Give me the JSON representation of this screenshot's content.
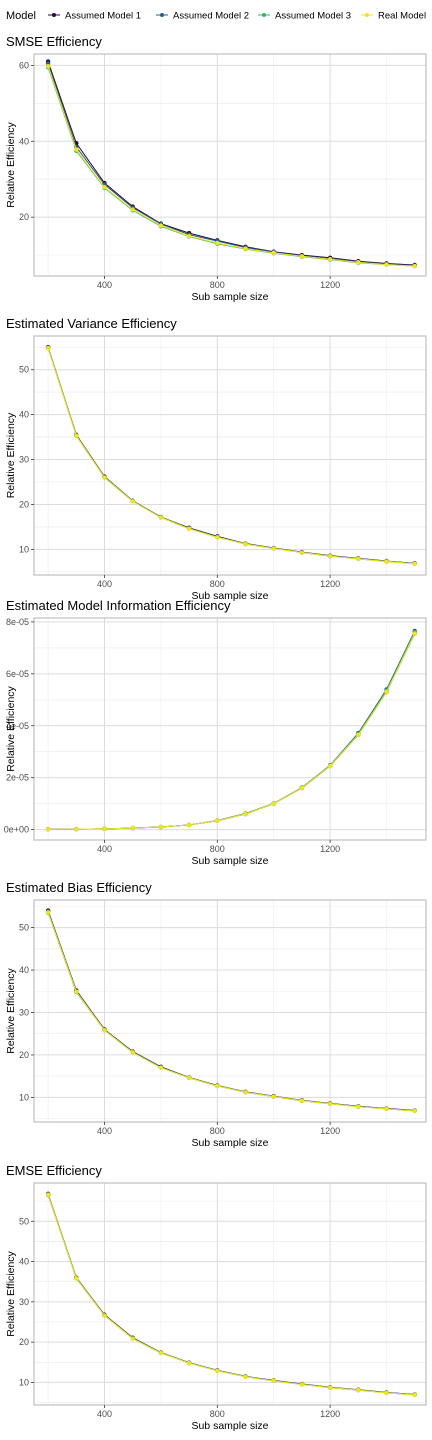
{
  "legend": {
    "title": "Model",
    "items": [
      {
        "label": "Assumed Model 1",
        "color": "#2b0a3d"
      },
      {
        "label": "Assumed Model 2",
        "color": "#2c5d8a"
      },
      {
        "label": "Assumed Model 3",
        "color": "#2eb872"
      },
      {
        "label": "Real Model",
        "color": "#f2e41c"
      }
    ]
  },
  "chart_data": [
    {
      "type": "line",
      "title": "SMSE Efficiency",
      "xlabel": "Sub sample size",
      "ylabel": "Relative Efficiency",
      "x": [
        200,
        300,
        400,
        500,
        600,
        700,
        800,
        900,
        1000,
        1100,
        1200,
        1300,
        1400,
        1500
      ],
      "xlim": [
        150,
        1540
      ],
      "ylim": [
        4.5,
        63
      ],
      "xticks": [
        400,
        800,
        1200
      ],
      "yticks": [
        20,
        40,
        60
      ],
      "series": [
        {
          "name": "Assumed Model 1",
          "values": [
            61.0,
            39.5,
            29.0,
            22.8,
            18.3,
            15.8,
            13.9,
            12.2,
            10.9,
            10.0,
            9.3,
            8.4,
            7.8,
            7.4
          ]
        },
        {
          "name": "Assumed Model 2",
          "values": [
            60.5,
            38.5,
            28.6,
            22.5,
            18.2,
            15.4,
            13.7,
            12.0,
            10.8,
            9.8,
            9.0,
            8.2,
            7.6,
            7.2
          ]
        },
        {
          "name": "Assumed Model 3",
          "values": [
            59.5,
            37.5,
            27.7,
            21.8,
            17.6,
            14.9,
            13.0,
            11.6,
            10.5,
            9.6,
            8.8,
            8.0,
            7.5,
            7.1
          ]
        },
        {
          "name": "Real Model",
          "values": [
            59.8,
            37.8,
            27.9,
            22.0,
            17.8,
            15.0,
            13.2,
            11.7,
            10.6,
            9.7,
            8.9,
            8.1,
            7.5,
            7.1
          ]
        }
      ]
    },
    {
      "type": "line",
      "title": "Estimated Variance Efficiency",
      "xlabel": "Sub sample size",
      "ylabel": "Relative Efficiency",
      "x": [
        200,
        300,
        400,
        500,
        600,
        700,
        800,
        900,
        1000,
        1100,
        1200,
        1300,
        1400,
        1500
      ],
      "xlim": [
        150,
        1540
      ],
      "ylim": [
        4.3,
        57.5
      ],
      "xticks": [
        400,
        800,
        1200
      ],
      "yticks": [
        10,
        20,
        30,
        40,
        50
      ],
      "series": [
        {
          "name": "Assumed Model 1",
          "values": [
            55.0,
            35.5,
            26.2,
            20.8,
            17.2,
            14.8,
            12.9,
            11.3,
            10.3,
            9.4,
            8.6,
            8.0,
            7.4,
            6.9
          ]
        },
        {
          "name": "Assumed Model 2",
          "values": [
            54.9,
            35.4,
            26.1,
            20.8,
            17.2,
            14.7,
            12.8,
            11.2,
            10.3,
            9.3,
            8.5,
            8.0,
            7.4,
            6.9
          ]
        },
        {
          "name": "Assumed Model 3",
          "values": [
            54.8,
            35.3,
            26.0,
            20.7,
            17.1,
            14.6,
            12.7,
            11.2,
            10.2,
            9.3,
            8.5,
            7.9,
            7.3,
            6.8
          ]
        },
        {
          "name": "Real Model",
          "values": [
            54.8,
            35.3,
            26.0,
            20.7,
            17.1,
            14.6,
            12.7,
            11.2,
            10.2,
            9.3,
            8.5,
            7.9,
            7.3,
            6.8
          ]
        }
      ]
    },
    {
      "type": "line",
      "title": "Estimated Model Information Efficiency",
      "xlabel": "Sub sample size",
      "ylabel": "Relative Efficiency",
      "x": [
        200,
        300,
        400,
        500,
        600,
        700,
        800,
        900,
        1000,
        1100,
        1200,
        1300,
        1400,
        1500
      ],
      "xlim": [
        150,
        1540
      ],
      "ylim": [
        -4e-06,
        8.15e-05
      ],
      "xticks": [
        400,
        800,
        1200
      ],
      "yticks": [
        0,
        2e-05,
        4e-05,
        6e-05,
        8e-05
      ],
      "ytick_labels": [
        "0e+00",
        "2e-05",
        "4e-05",
        "6e-05",
        "8e-05"
      ],
      "series": [
        {
          "name": "Assumed Model 1",
          "values": [
            1e-07,
            2e-07,
            3e-07,
            6e-07,
            1e-06,
            1.8e-06,
            3.4e-06,
            6e-06,
            1e-05,
            1.6e-05,
            2.45e-05,
            3.65e-05,
            5.3e-05,
            7.55e-05
          ]
        },
        {
          "name": "Assumed Model 2",
          "values": [
            1e-07,
            2e-07,
            3e-07,
            6e-07,
            1e-06,
            1.8e-06,
            3.5e-06,
            6.2e-06,
            1.01e-05,
            1.62e-05,
            2.48e-05,
            3.72e-05,
            5.4e-05,
            7.65e-05
          ]
        },
        {
          "name": "Assumed Model 3",
          "values": [
            1e-07,
            2e-07,
            3e-07,
            6e-07,
            1e-06,
            1.8e-06,
            3.4e-06,
            6.1e-06,
            1.01e-05,
            1.61e-05,
            2.47e-05,
            3.68e-05,
            5.35e-05,
            7.6e-05
          ]
        },
        {
          "name": "Real Model",
          "values": [
            1e-07,
            2e-07,
            3e-07,
            6e-07,
            1e-06,
            1.8e-06,
            3.4e-06,
            6e-06,
            1e-05,
            1.6e-05,
            2.45e-05,
            3.65e-05,
            5.3e-05,
            7.55e-05
          ]
        }
      ]
    },
    {
      "type": "line",
      "title": "Estimated Bias Efficiency",
      "xlabel": "Sub sample size",
      "ylabel": "Relative Efficiency",
      "x": [
        200,
        300,
        400,
        500,
        600,
        700,
        800,
        900,
        1000,
        1100,
        1200,
        1300,
        1400,
        1500
      ],
      "xlim": [
        150,
        1540
      ],
      "ylim": [
        4.2,
        56.5
      ],
      "xticks": [
        400,
        800,
        1200
      ],
      "yticks": [
        10,
        20,
        30,
        40,
        50
      ],
      "series": [
        {
          "name": "Assumed Model 1",
          "values": [
            54.0,
            35.2,
            26.0,
            20.8,
            17.2,
            14.7,
            12.8,
            11.3,
            10.3,
            9.3,
            8.6,
            7.9,
            7.4,
            6.9
          ]
        },
        {
          "name": "Assumed Model 2",
          "values": [
            53.8,
            35.0,
            25.9,
            20.7,
            17.1,
            14.6,
            12.7,
            11.2,
            10.2,
            9.2,
            8.5,
            7.9,
            7.3,
            6.9
          ]
        },
        {
          "name": "Assumed Model 3",
          "values": [
            53.5,
            34.8,
            25.8,
            20.6,
            17.0,
            14.6,
            12.7,
            11.2,
            10.2,
            9.2,
            8.5,
            7.8,
            7.3,
            6.8
          ]
        },
        {
          "name": "Real Model",
          "values": [
            53.6,
            34.9,
            25.8,
            20.6,
            17.0,
            14.6,
            12.7,
            11.2,
            10.2,
            9.2,
            8.5,
            7.8,
            7.3,
            6.8
          ]
        }
      ]
    },
    {
      "type": "line",
      "title": "EMSE Efficiency",
      "xlabel": "Sub sample size",
      "ylabel": "Relative Efficiency",
      "x": [
        200,
        300,
        400,
        500,
        600,
        700,
        800,
        900,
        1000,
        1100,
        1200,
        1300,
        1400,
        1500
      ],
      "xlim": [
        150,
        1540
      ],
      "ylim": [
        4.4,
        59.5
      ],
      "xticks": [
        400,
        800,
        1200
      ],
      "yticks": [
        10,
        20,
        30,
        40,
        50
      ],
      "series": [
        {
          "name": "Assumed Model 1",
          "values": [
            56.8,
            36.0,
            26.8,
            21.1,
            17.4,
            14.9,
            13.0,
            11.5,
            10.5,
            9.6,
            8.8,
            8.2,
            7.5,
            7.0
          ]
        },
        {
          "name": "Assumed Model 2",
          "values": [
            56.7,
            35.9,
            26.7,
            21.0,
            17.4,
            14.9,
            13.0,
            11.5,
            10.4,
            9.6,
            8.7,
            8.1,
            7.5,
            7.0
          ]
        },
        {
          "name": "Assumed Model 3",
          "values": [
            56.5,
            35.8,
            26.6,
            20.9,
            17.3,
            14.8,
            12.9,
            11.4,
            10.4,
            9.5,
            8.7,
            8.1,
            7.4,
            6.9
          ]
        },
        {
          "name": "Real Model",
          "values": [
            56.6,
            35.8,
            26.6,
            20.9,
            17.3,
            14.8,
            12.9,
            11.4,
            10.4,
            9.5,
            8.7,
            8.1,
            7.4,
            6.9
          ]
        }
      ]
    }
  ]
}
